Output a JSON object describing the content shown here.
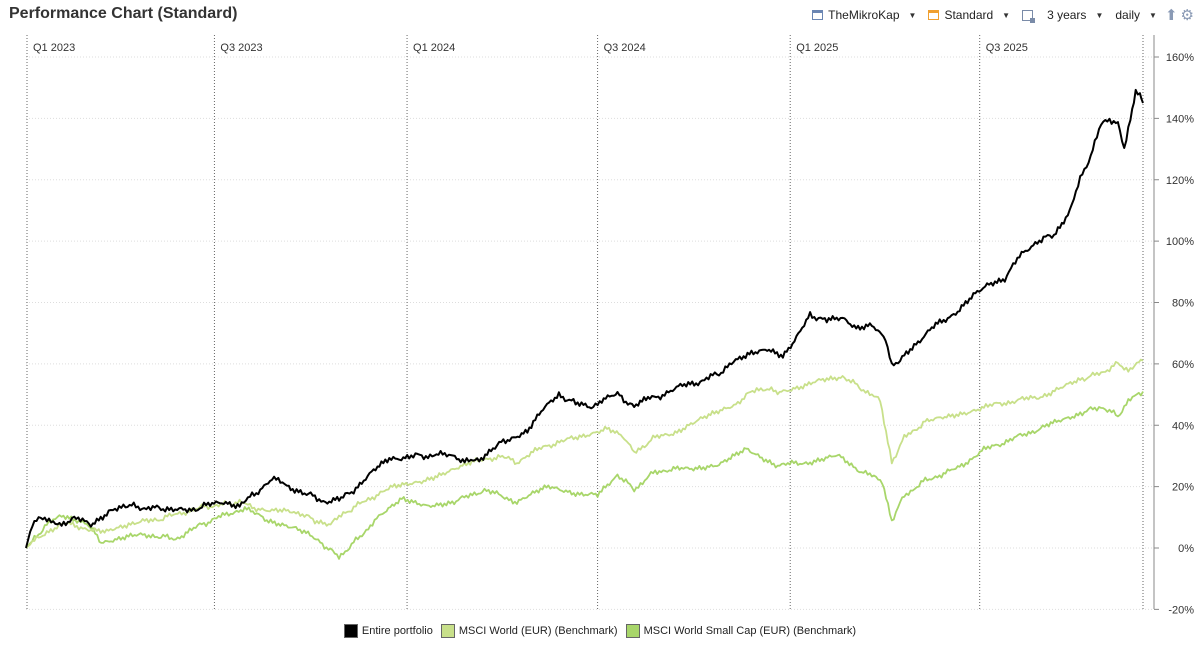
{
  "header": {
    "title": "Performance Chart (Standard)",
    "portfolio_selector": "TheMikroKap",
    "view_selector": "Standard",
    "period_selector": "3 years",
    "interval_selector": "daily",
    "icons": [
      "portfolio-icon",
      "view-icon",
      "calendar-icon",
      "upload-icon",
      "gear-icon"
    ]
  },
  "colors": {
    "portfolio": "#000000",
    "msci_world": "#c8e08a",
    "msci_small_cap": "#a8d66a",
    "grid": "#dddddd",
    "quarter_line": "#666666"
  },
  "chart_data": {
    "type": "line",
    "title": "Performance Chart (Standard)",
    "x_axis": {
      "type": "time",
      "range": [
        "2023-01-02",
        "2025-12-04"
      ],
      "quarter_labels": [
        {
          "date": "2023-01-01",
          "label": "Q1 2023"
        },
        {
          "date": "2023-07-01",
          "label": "Q3 2023"
        },
        {
          "date": "2024-01-01",
          "label": "Q1 2024"
        },
        {
          "date": "2024-07-01",
          "label": "Q3 2024"
        },
        {
          "date": "2025-01-01",
          "label": "Q1 2025"
        },
        {
          "date": "2025-07-01",
          "label": "Q3 2025"
        }
      ],
      "label_position": "top"
    },
    "y_axis": {
      "unit": "%",
      "range": [
        -20,
        160
      ],
      "ticks": [
        -20,
        0,
        20,
        40,
        60,
        80,
        100,
        120,
        140,
        160
      ],
      "tick_labels": [
        "-20%",
        "0%",
        "20%",
        "40%",
        "60%",
        "80%",
        "100%",
        "120%",
        "140%",
        "160%"
      ],
      "position": "right",
      "grid": true
    },
    "legend_position": "bottom",
    "series": [
      {
        "name": "Entire portfolio",
        "color": "#000000",
        "points": [
          [
            "2023-01-02",
            0
          ],
          [
            "2023-01-08",
            8
          ],
          [
            "2023-01-20",
            10
          ],
          [
            "2023-02-05",
            7
          ],
          [
            "2023-02-15",
            10
          ],
          [
            "2023-03-05",
            8
          ],
          [
            "2023-03-20",
            11
          ],
          [
            "2023-04-05",
            14
          ],
          [
            "2023-04-25",
            13
          ],
          [
            "2023-05-15",
            13
          ],
          [
            "2023-06-05",
            12
          ],
          [
            "2023-06-25",
            14
          ],
          [
            "2023-07-10",
            15
          ],
          [
            "2023-07-25",
            14
          ],
          [
            "2023-08-10",
            18
          ],
          [
            "2023-08-25",
            23
          ],
          [
            "2023-09-10",
            20
          ],
          [
            "2023-09-25",
            18
          ],
          [
            "2023-10-15",
            15
          ],
          [
            "2023-10-30",
            16
          ],
          [
            "2023-11-15",
            20
          ],
          [
            "2023-11-30",
            25
          ],
          [
            "2023-12-15",
            29
          ],
          [
            "2024-01-05",
            30
          ],
          [
            "2024-01-25",
            30
          ],
          [
            "2024-02-10",
            31
          ],
          [
            "2024-02-25",
            28
          ],
          [
            "2024-03-10",
            29
          ],
          [
            "2024-03-25",
            33
          ],
          [
            "2024-04-10",
            36
          ],
          [
            "2024-04-25",
            38
          ],
          [
            "2024-05-10",
            45
          ],
          [
            "2024-05-25",
            50
          ],
          [
            "2024-06-10",
            47
          ],
          [
            "2024-06-25",
            46
          ],
          [
            "2024-07-05",
            48
          ],
          [
            "2024-07-20",
            50
          ],
          [
            "2024-08-05",
            46
          ],
          [
            "2024-08-20",
            49
          ],
          [
            "2024-09-05",
            50
          ],
          [
            "2024-09-20",
            53
          ],
          [
            "2024-10-05",
            54
          ],
          [
            "2024-10-25",
            57
          ],
          [
            "2024-11-10",
            61
          ],
          [
            "2024-11-25",
            64
          ],
          [
            "2024-12-10",
            65
          ],
          [
            "2024-12-25",
            62
          ],
          [
            "2025-01-05",
            67
          ],
          [
            "2025-01-20",
            76
          ],
          [
            "2025-02-05",
            74
          ],
          [
            "2025-02-20",
            75
          ],
          [
            "2025-03-05",
            72
          ],
          [
            "2025-03-20",
            73
          ],
          [
            "2025-04-02",
            68
          ],
          [
            "2025-04-08",
            59
          ],
          [
            "2025-04-20",
            63
          ],
          [
            "2025-05-05",
            67
          ],
          [
            "2025-05-20",
            73
          ],
          [
            "2025-06-10",
            77
          ],
          [
            "2025-06-25",
            82
          ],
          [
            "2025-07-10",
            86
          ],
          [
            "2025-07-25",
            88
          ],
          [
            "2025-08-10",
            96
          ],
          [
            "2025-08-25",
            100
          ],
          [
            "2025-09-10",
            102
          ],
          [
            "2025-09-25",
            110
          ],
          [
            "2025-10-05",
            120
          ],
          [
            "2025-10-15",
            128
          ],
          [
            "2025-10-25",
            138
          ],
          [
            "2025-11-02",
            140
          ],
          [
            "2025-11-10",
            138
          ],
          [
            "2025-11-16",
            130
          ],
          [
            "2025-11-22",
            140
          ],
          [
            "2025-11-27",
            149
          ],
          [
            "2025-12-01",
            148
          ],
          [
            "2025-12-04",
            145
          ]
        ]
      },
      {
        "name": "MSCI World (EUR) (Benchmark)",
        "color": "#c8e08a",
        "points": [
          [
            "2023-01-02",
            0
          ],
          [
            "2023-01-20",
            5
          ],
          [
            "2023-02-10",
            8
          ],
          [
            "2023-03-05",
            6
          ],
          [
            "2023-03-20",
            5
          ],
          [
            "2023-04-10",
            8
          ],
          [
            "2023-05-05",
            9
          ],
          [
            "2023-05-25",
            11
          ],
          [
            "2023-06-15",
            13
          ],
          [
            "2023-07-05",
            14
          ],
          [
            "2023-07-25",
            15
          ],
          [
            "2023-08-10",
            13
          ],
          [
            "2023-08-25",
            12
          ],
          [
            "2023-09-15",
            12
          ],
          [
            "2023-10-05",
            9
          ],
          [
            "2023-10-20",
            8
          ],
          [
            "2023-11-05",
            12
          ],
          [
            "2023-11-25",
            16
          ],
          [
            "2023-12-20",
            20
          ],
          [
            "2024-01-15",
            22
          ],
          [
            "2024-02-10",
            25
          ],
          [
            "2024-03-05",
            28
          ],
          [
            "2024-03-30",
            30
          ],
          [
            "2024-04-15",
            28
          ],
          [
            "2024-05-10",
            33
          ],
          [
            "2024-06-10",
            36
          ],
          [
            "2024-07-10",
            39
          ],
          [
            "2024-07-25",
            36
          ],
          [
            "2024-08-05",
            31
          ],
          [
            "2024-08-25",
            36
          ],
          [
            "2024-09-15",
            38
          ],
          [
            "2024-10-15",
            43
          ],
          [
            "2024-11-10",
            47
          ],
          [
            "2024-11-30",
            52
          ],
          [
            "2024-12-20",
            51
          ],
          [
            "2025-01-15",
            53
          ],
          [
            "2025-02-05",
            55
          ],
          [
            "2025-02-20",
            56
          ],
          [
            "2025-03-10",
            52
          ],
          [
            "2025-03-28",
            48
          ],
          [
            "2025-04-08",
            28
          ],
          [
            "2025-04-20",
            36
          ],
          [
            "2025-05-10",
            41
          ],
          [
            "2025-06-05",
            43
          ],
          [
            "2025-07-05",
            46
          ],
          [
            "2025-08-05",
            48
          ],
          [
            "2025-09-05",
            50
          ],
          [
            "2025-10-05",
            55
          ],
          [
            "2025-10-25",
            57
          ],
          [
            "2025-11-10",
            60
          ],
          [
            "2025-11-20",
            58
          ],
          [
            "2025-12-04",
            61
          ]
        ]
      },
      {
        "name": "MSCI World Small Cap (EUR) (Benchmark)",
        "color": "#a8d66a",
        "points": [
          [
            "2023-01-02",
            0
          ],
          [
            "2023-01-20",
            7
          ],
          [
            "2023-02-05",
            11
          ],
          [
            "2023-03-01",
            8
          ],
          [
            "2023-03-15",
            2
          ],
          [
            "2023-04-10",
            4
          ],
          [
            "2023-05-05",
            4
          ],
          [
            "2023-05-25",
            3
          ],
          [
            "2023-06-15",
            7
          ],
          [
            "2023-07-05",
            10
          ],
          [
            "2023-07-30",
            13
          ],
          [
            "2023-08-20",
            9
          ],
          [
            "2023-09-15",
            7
          ],
          [
            "2023-10-10",
            2
          ],
          [
            "2023-10-28",
            -3
          ],
          [
            "2023-11-15",
            3
          ],
          [
            "2023-12-05",
            10
          ],
          [
            "2023-12-27",
            16
          ],
          [
            "2024-01-20",
            14
          ],
          [
            "2024-02-15",
            15
          ],
          [
            "2024-03-15",
            19
          ],
          [
            "2024-04-15",
            15
          ],
          [
            "2024-05-15",
            20
          ],
          [
            "2024-06-10",
            18
          ],
          [
            "2024-07-01",
            17
          ],
          [
            "2024-07-20",
            24
          ],
          [
            "2024-08-05",
            19
          ],
          [
            "2024-08-25",
            25
          ],
          [
            "2024-09-25",
            26
          ],
          [
            "2024-10-25",
            27
          ],
          [
            "2024-11-20",
            32
          ],
          [
            "2024-12-20",
            27
          ],
          [
            "2025-01-20",
            28
          ],
          [
            "2025-02-15",
            30
          ],
          [
            "2025-03-10",
            25
          ],
          [
            "2025-03-30",
            22
          ],
          [
            "2025-04-08",
            9
          ],
          [
            "2025-04-20",
            17
          ],
          [
            "2025-05-10",
            22
          ],
          [
            "2025-06-10",
            26
          ],
          [
            "2025-07-05",
            32
          ],
          [
            "2025-08-05",
            36
          ],
          [
            "2025-09-05",
            40
          ],
          [
            "2025-10-05",
            44
          ],
          [
            "2025-10-25",
            46
          ],
          [
            "2025-11-10",
            43
          ],
          [
            "2025-11-20",
            48
          ],
          [
            "2025-12-04",
            51
          ]
        ]
      }
    ]
  }
}
